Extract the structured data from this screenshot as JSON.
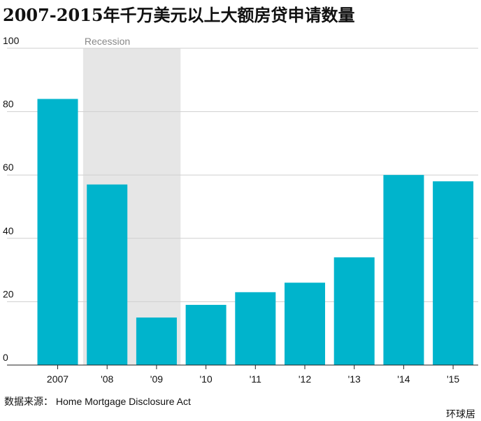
{
  "chart_data": {
    "type": "bar",
    "title": "2007-2015年千万美元以上大额房贷申请数量",
    "categories": [
      "2007",
      "'08",
      "'09",
      "'10",
      "'11",
      "'12",
      "'13",
      "'14",
      "'15"
    ],
    "values": [
      84,
      57,
      15,
      19,
      23,
      26,
      34,
      60,
      58
    ],
    "ylim": [
      0,
      100
    ],
    "yticks": [
      0,
      20,
      40,
      60,
      80,
      100
    ],
    "grid": true,
    "bar_color": "#00b4cc",
    "shaded_region": {
      "label": "Recession",
      "from_category": "'08",
      "to_category": "'09",
      "color": "#e6e6e6"
    }
  },
  "source": "数据来源：  Home Mortgage Disclosure Act",
  "credit": "环球居"
}
